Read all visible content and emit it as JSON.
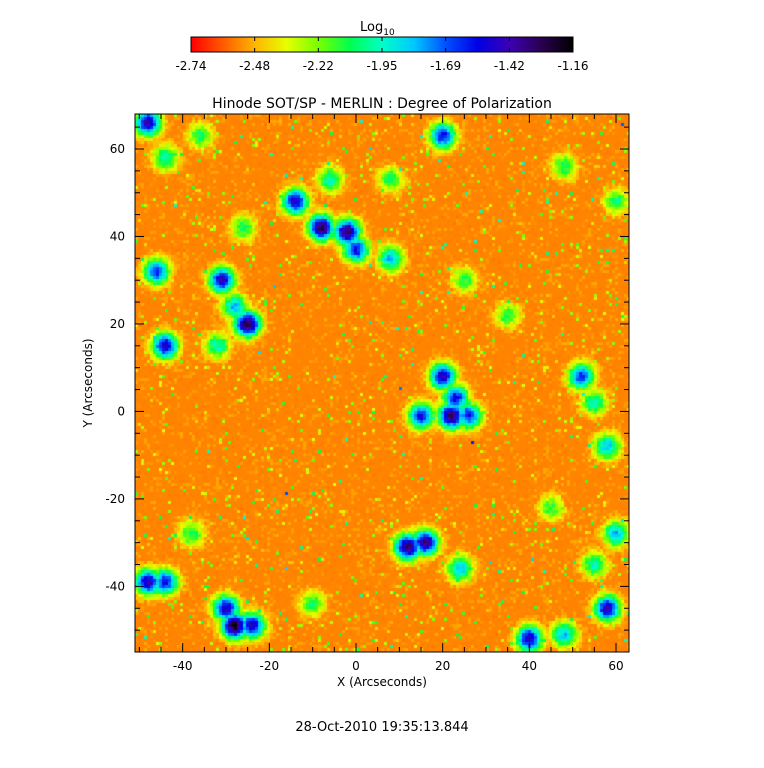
{
  "colorbar": {
    "label": "Log",
    "label_sub": "10",
    "ticks": [
      "-2.74",
      "-2.48",
      "-2.22",
      "-1.95",
      "-1.69",
      "-1.42",
      "-1.16"
    ],
    "range": [
      -2.74,
      -1.16
    ],
    "colors": [
      "#ff0000",
      "#ff5a00",
      "#ffb400",
      "#e6ff00",
      "#78ff00",
      "#00ff50",
      "#00ffc8",
      "#00c8ff",
      "#0050ff",
      "#0000e6",
      "#3c00b4",
      "#2a0050",
      "#000000"
    ]
  },
  "chart_data": {
    "type": "heatmap",
    "title": "Hinode SOT/SP - MERLIN : Degree of Polarization",
    "xlabel": "X (Arcseconds)",
    "ylabel": "Y (Arcseconds)",
    "xlim": [
      -51,
      63
    ],
    "ylim": [
      -55,
      68
    ],
    "xticks": [
      -40,
      -20,
      0,
      20,
      40,
      60
    ],
    "yticks": [
      -40,
      -20,
      0,
      20,
      40,
      60
    ],
    "xtick_labels": [
      "-40",
      "-20",
      "0",
      "20",
      "40",
      "60"
    ],
    "ytick_labels": [
      "-40",
      "-20",
      "0",
      "20",
      "40",
      "60"
    ],
    "value_units": "log10 degree of polarization",
    "value_range": [
      -2.74,
      -1.16
    ],
    "background_level": -2.62,
    "features": [
      {
        "x": -48,
        "y": 66,
        "value": -1.42
      },
      {
        "x": -44,
        "y": 58,
        "value": -1.95
      },
      {
        "x": -36,
        "y": 63,
        "value": -2.05
      },
      {
        "x": -6,
        "y": 53,
        "value": -1.95
      },
      {
        "x": 8,
        "y": 53,
        "value": -2.05
      },
      {
        "x": 20,
        "y": 63,
        "value": -1.55
      },
      {
        "x": 48,
        "y": 56,
        "value": -2.05
      },
      {
        "x": 60,
        "y": 48,
        "value": -2.05
      },
      {
        "x": -14,
        "y": 48,
        "value": -1.45
      },
      {
        "x": -8,
        "y": 42,
        "value": -1.3
      },
      {
        "x": -2,
        "y": 41,
        "value": -1.3
      },
      {
        "x": 0,
        "y": 37,
        "value": -1.55
      },
      {
        "x": -26,
        "y": 42,
        "value": -2.05
      },
      {
        "x": -46,
        "y": 32,
        "value": -1.6
      },
      {
        "x": -31,
        "y": 30,
        "value": -1.45
      },
      {
        "x": -28,
        "y": 24,
        "value": -1.8
      },
      {
        "x": -25,
        "y": 20,
        "value": -1.25
      },
      {
        "x": -44,
        "y": 15,
        "value": -1.45
      },
      {
        "x": -32,
        "y": 15,
        "value": -1.95
      },
      {
        "x": 8,
        "y": 35,
        "value": -1.8
      },
      {
        "x": 25,
        "y": 30,
        "value": -2.1
      },
      {
        "x": 35,
        "y": 22,
        "value": -2.1
      },
      {
        "x": 20,
        "y": 8,
        "value": -1.45
      },
      {
        "x": 23,
        "y": 3,
        "value": -1.55
      },
      {
        "x": 22,
        "y": -1,
        "value": -1.3
      },
      {
        "x": 15,
        "y": -1,
        "value": -1.55
      },
      {
        "x": 26,
        "y": -1,
        "value": -1.6
      },
      {
        "x": 52,
        "y": 8,
        "value": -1.6
      },
      {
        "x": 55,
        "y": 2,
        "value": -1.95
      },
      {
        "x": 58,
        "y": -8,
        "value": -1.8
      },
      {
        "x": 45,
        "y": -22,
        "value": -2.1
      },
      {
        "x": 12,
        "y": -31,
        "value": -1.3
      },
      {
        "x": 16,
        "y": -30,
        "value": -1.35
      },
      {
        "x": 24,
        "y": -36,
        "value": -1.8
      },
      {
        "x": -38,
        "y": -28,
        "value": -2.05
      },
      {
        "x": -48,
        "y": -39,
        "value": -1.45
      },
      {
        "x": -44,
        "y": -39,
        "value": -1.55
      },
      {
        "x": -30,
        "y": -45,
        "value": -1.45
      },
      {
        "x": -28,
        "y": -49,
        "value": -1.2
      },
      {
        "x": -24,
        "y": -49,
        "value": -1.45
      },
      {
        "x": -10,
        "y": -44,
        "value": -2.05
      },
      {
        "x": 40,
        "y": -52,
        "value": -1.45
      },
      {
        "x": 48,
        "y": -51,
        "value": -1.8
      },
      {
        "x": 58,
        "y": -45,
        "value": -1.45
      },
      {
        "x": 55,
        "y": -35,
        "value": -1.95
      },
      {
        "x": 60,
        "y": -28,
        "value": -1.8
      }
    ]
  },
  "footer": {
    "timestamp": "28-Oct-2010 19:35:13.844"
  }
}
